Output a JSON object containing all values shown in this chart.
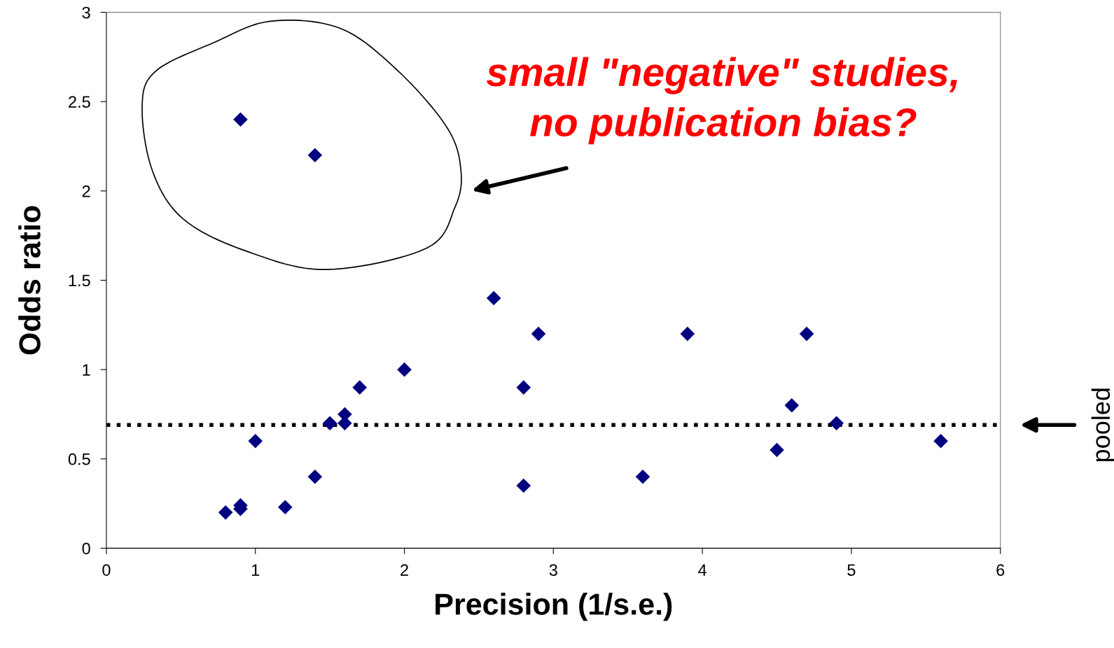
{
  "chart_data": {
    "type": "scatter",
    "xlabel": "Precision (1/s.e.)",
    "ylabel": "Odds ratio",
    "x": [
      0.9,
      1.4,
      2.6,
      2.9,
      3.9,
      4.7,
      2.0,
      1.7,
      2.8,
      4.6,
      1.6,
      1.5,
      1.6,
      4.9,
      1.0,
      5.6,
      4.5,
      1.4,
      3.6,
      2.8,
      1.2,
      0.9,
      0.9,
      0.8
    ],
    "values": [
      2.4,
      2.2,
      1.4,
      1.2,
      1.2,
      1.2,
      1.0,
      0.9,
      0.9,
      0.8,
      0.75,
      0.7,
      0.7,
      0.7,
      0.6,
      0.6,
      0.55,
      0.4,
      0.4,
      0.35,
      0.23,
      0.24,
      0.22,
      0.2
    ],
    "color": "#000080",
    "marker": "diamond",
    "xlim": [
      0,
      6
    ],
    "xticks": [
      0,
      1,
      2,
      3,
      4,
      5,
      6
    ],
    "ylim": [
      0,
      3
    ],
    "yticks": [
      0,
      0.5,
      1,
      1.5,
      2,
      2.5,
      3
    ],
    "grid": false,
    "ref_lines": [
      {
        "axis": "y",
        "value": 0.69,
        "label": "pooled",
        "color": "#000000",
        "line_style": "dotted"
      }
    ],
    "annotations": [
      "small \"negative\" studies,\nno publication bias?"
    ]
  }
}
